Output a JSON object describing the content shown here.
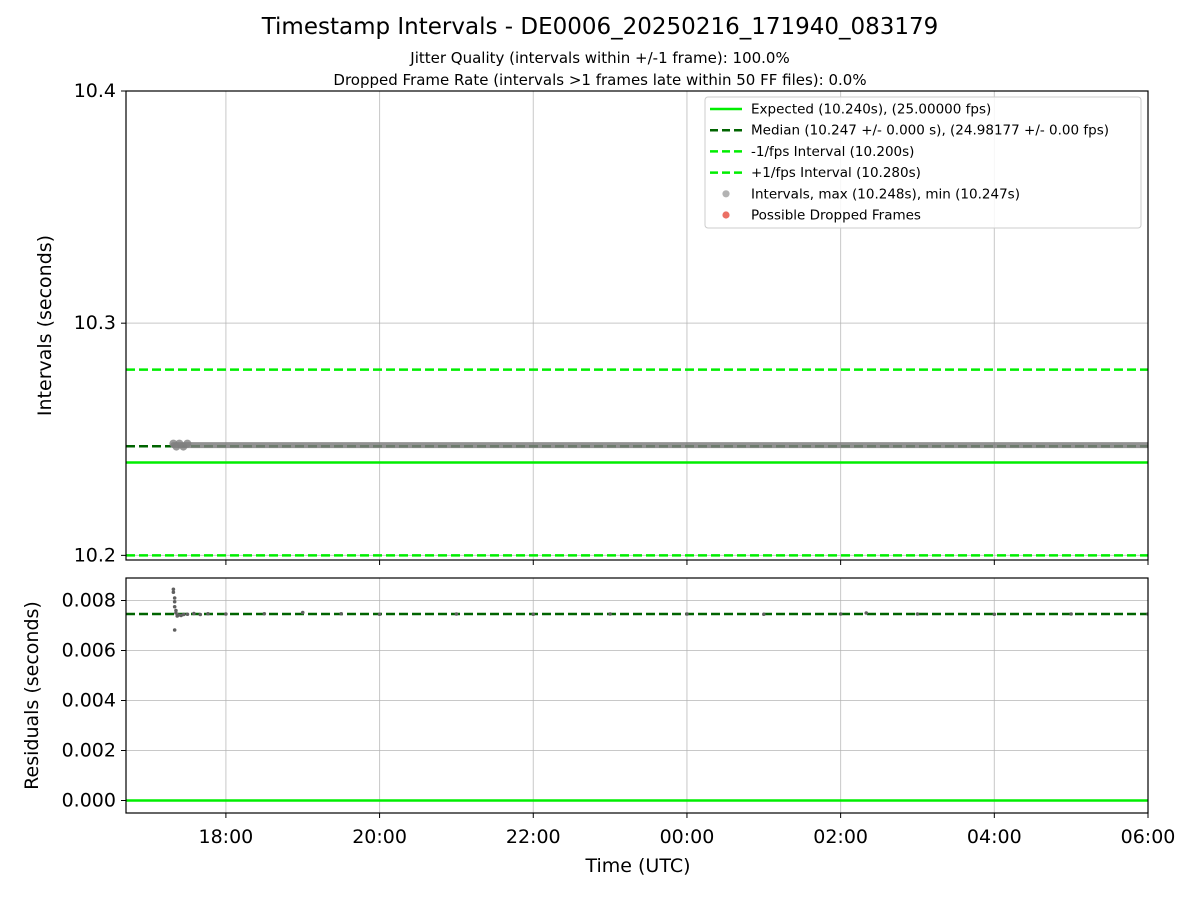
{
  "figure": {
    "title": "Timestamp Intervals - DE0006_20250216_171940_083179",
    "subtitle_jitter": "Jitter Quality (intervals within +/-1 frame): 100.0%",
    "subtitle_dropped": "Dropped Frame Rate (intervals >1 frames late within 50 FF files): 0.0%"
  },
  "colors": {
    "expected": "#00ee00",
    "median": "#006400",
    "interval_bounds": "#00ee00",
    "intervals": "#808080",
    "dropped": "#e8574a",
    "grid": "#b0b0b0"
  },
  "chart_data": [
    {
      "type": "scatter",
      "panel": "intervals",
      "ylabel": "Intervals (seconds)",
      "xlabel": "",
      "ylim": [
        10.198,
        10.4
      ],
      "xlim": [
        "2025-02-16 16:42",
        "2025-02-17 06:00"
      ],
      "yticks": [
        10.2,
        10.3,
        10.4
      ],
      "ytick_labels": [
        "10.2",
        "10.3",
        "10.4"
      ],
      "grid": true,
      "legend_position": "top-right",
      "legend": [
        {
          "label": "Expected (10.240s), (25.00000 fps)",
          "kind": "line-solid",
          "color_key": "expected"
        },
        {
          "label": "Median (10.247 +/- 0.000 s), (24.98177 +/- 0.00 fps)",
          "kind": "line-dashed",
          "color_key": "median"
        },
        {
          "label": "-1/fps Interval (10.200s)",
          "kind": "line-dashed",
          "color_key": "interval_bounds"
        },
        {
          "label": "+1/fps Interval (10.280s)",
          "kind": "line-dashed",
          "color_key": "interval_bounds"
        },
        {
          "label": "Intervals, max (10.248s), min (10.247s)",
          "kind": "dot",
          "color_key": "intervals"
        },
        {
          "label": "Possible Dropped Frames",
          "kind": "dot",
          "color_key": "dropped"
        }
      ],
      "hlines": [
        {
          "y": 10.24,
          "style": "solid",
          "color_key": "expected"
        },
        {
          "y": 10.247,
          "style": "dashed",
          "color_key": "median"
        },
        {
          "y": 10.2,
          "style": "dashed",
          "color_key": "interval_bounds"
        },
        {
          "y": 10.28,
          "style": "dashed",
          "color_key": "interval_bounds"
        }
      ],
      "series": [
        {
          "name": "Intervals, max (10.248s), min (10.247s)",
          "x_start": "2025-02-16 17:19",
          "x_end": "2025-02-17 06:00",
          "y": 10.2475
        }
      ]
    },
    {
      "type": "scatter",
      "panel": "residuals",
      "ylabel": "Residuals (seconds)",
      "xlabel": "Time (UTC)",
      "ylim": [
        -0.0005,
        0.0089
      ],
      "yticks": [
        0.0,
        0.002,
        0.004,
        0.006,
        0.008
      ],
      "ytick_labels": [
        "0.000",
        "0.002",
        "0.004",
        "0.006",
        "0.008"
      ],
      "xticks": [
        "2025-02-16 18:00",
        "2025-02-16 20:00",
        "2025-02-16 22:00",
        "2025-02-17 00:00",
        "2025-02-17 02:00",
        "2025-02-17 04:00",
        "2025-02-17 06:00"
      ],
      "xtick_labels": [
        "18:00",
        "20:00",
        "22:00",
        "00:00",
        "02:00",
        "04:00",
        "06:00"
      ],
      "grid": true,
      "hlines": [
        {
          "y": 0.0,
          "style": "solid",
          "color_key": "expected"
        },
        {
          "y": 0.00746,
          "style": "dashed",
          "color_key": "median"
        }
      ],
      "series": [
        {
          "name": "Residuals",
          "points": [
            [
              "2025-02-16 17:19",
              0.00845
            ],
            [
              "2025-02-16 17:19",
              0.00833
            ],
            [
              "2025-02-16 17:20",
              0.0081
            ],
            [
              "2025-02-16 17:20",
              0.00795
            ],
            [
              "2025-02-16 17:20",
              0.00775
            ],
            [
              "2025-02-16 17:21",
              0.0076
            ],
            [
              "2025-02-16 17:21",
              0.0075
            ],
            [
              "2025-02-16 17:20",
              0.00682
            ],
            [
              "2025-02-16 17:22",
              0.00738
            ],
            [
              "2025-02-16 17:23",
              0.00742
            ],
            [
              "2025-02-16 17:25",
              0.0074
            ],
            [
              "2025-02-16 17:27",
              0.00744
            ],
            [
              "2025-02-16 17:30",
              0.00745
            ],
            [
              "2025-02-16 17:35",
              0.00748
            ],
            [
              "2025-02-16 17:40",
              0.00744
            ],
            [
              "2025-02-16 17:46",
              0.00747
            ],
            [
              "2025-02-16 18:00",
              0.00746
            ],
            [
              "2025-02-16 18:30",
              0.00747
            ],
            [
              "2025-02-16 19:00",
              0.00752
            ],
            [
              "2025-02-16 19:30",
              0.00747
            ],
            [
              "2025-02-16 20:00",
              0.00745
            ],
            [
              "2025-02-16 21:00",
              0.00746
            ],
            [
              "2025-02-16 22:00",
              0.00745
            ],
            [
              "2025-02-16 23:00",
              0.00746
            ],
            [
              "2025-02-17 00:00",
              0.00746
            ],
            [
              "2025-02-17 01:00",
              0.00745
            ],
            [
              "2025-02-17 02:00",
              0.00746
            ],
            [
              "2025-02-17 02:20",
              0.0075
            ],
            [
              "2025-02-17 03:00",
              0.00746
            ],
            [
              "2025-02-17 04:00",
              0.00745
            ],
            [
              "2025-02-17 05:00",
              0.00746
            ],
            [
              "2025-02-17 06:00",
              0.00746
            ]
          ]
        }
      ]
    }
  ]
}
